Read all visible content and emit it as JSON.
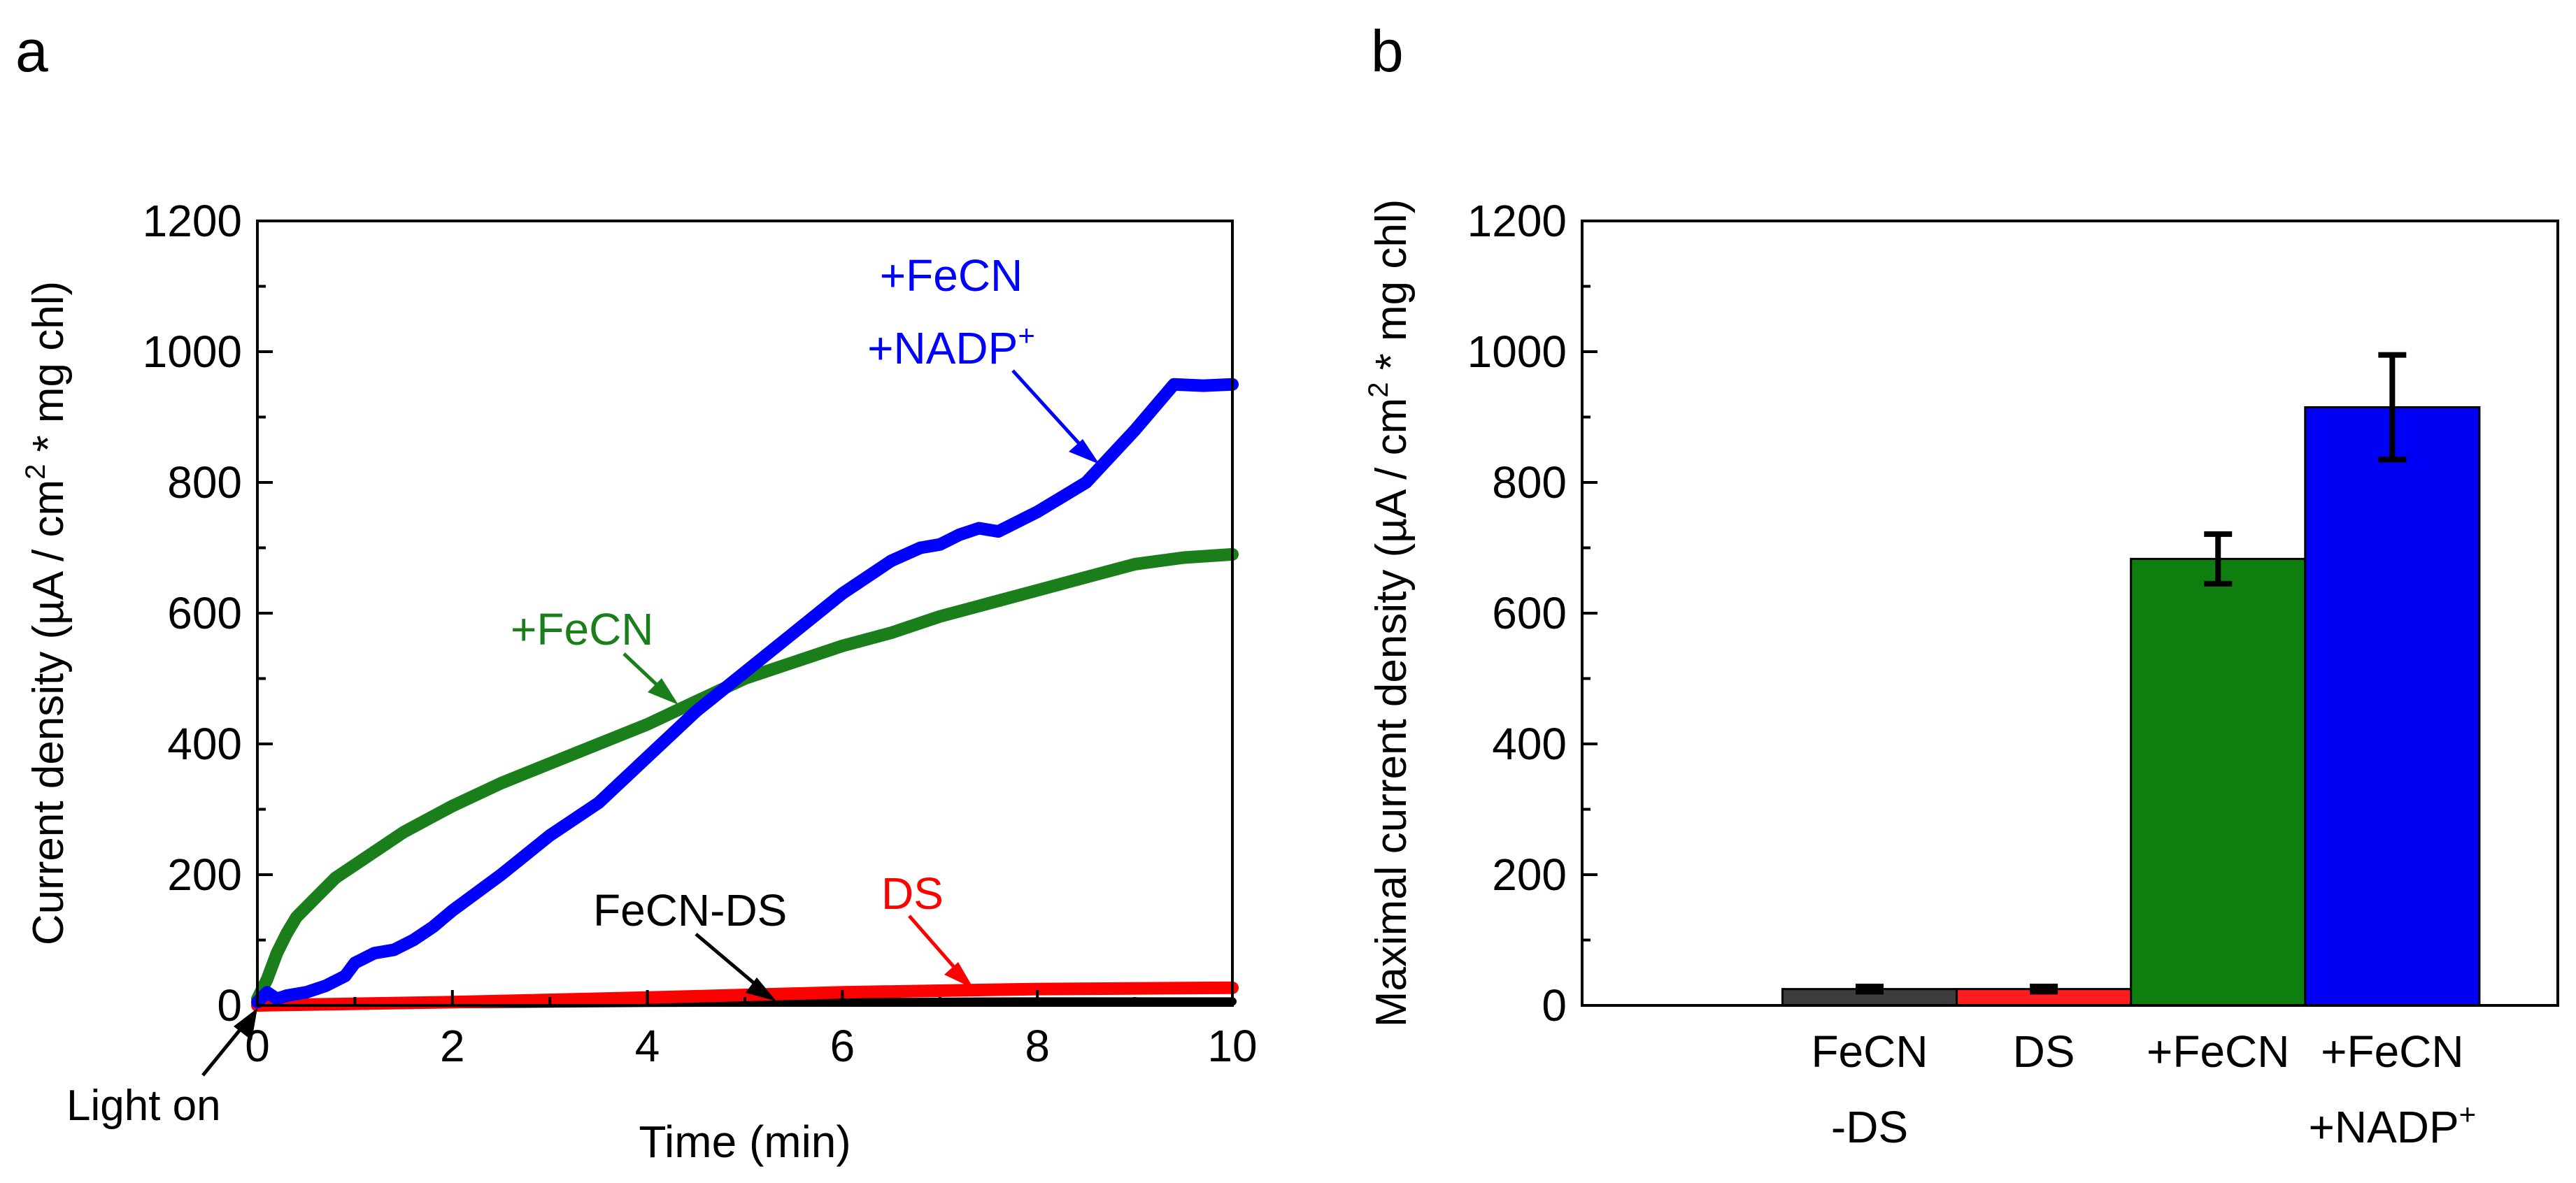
{
  "chart_data": [
    {
      "panel": "a",
      "type": "line",
      "xlabel": "Time (min)",
      "ylabel_main": "Current density (µA / cm",
      "ylabel_sup": "2",
      "ylabel_tail": " * mg chl)",
      "xlim": [
        0,
        10
      ],
      "ylim": [
        0,
        1200
      ],
      "xticks": [
        0,
        2,
        4,
        6,
        8,
        10
      ],
      "yticks": [
        0,
        200,
        400,
        600,
        800,
        1000,
        1200
      ],
      "series": [
        {
          "name": "+FeCN +NADP+",
          "color": "#0000ff",
          "x": [
            0,
            0.1,
            0.2,
            0.3,
            0.5,
            0.7,
            0.9,
            1.0,
            1.2,
            1.4,
            1.6,
            1.8,
            2.0,
            2.5,
            3.0,
            3.5,
            4.0,
            4.5,
            5.0,
            5.5,
            6.0,
            6.5,
            6.8,
            7.0,
            7.2,
            7.4,
            7.6,
            8.0,
            8.5,
            9.0,
            9.4,
            9.7,
            10.0
          ],
          "y": [
            5,
            20,
            10,
            15,
            20,
            30,
            45,
            65,
            80,
            85,
            100,
            120,
            145,
            200,
            260,
            310,
            380,
            450,
            510,
            570,
            630,
            680,
            700,
            705,
            720,
            730,
            725,
            755,
            800,
            880,
            950,
            948,
            950
          ]
        },
        {
          "name": "+FeCN",
          "color": "#1a7f1a",
          "x": [
            0,
            0.1,
            0.2,
            0.3,
            0.4,
            0.6,
            0.8,
            1.0,
            1.5,
            2.0,
            2.5,
            3.0,
            3.5,
            4.0,
            4.5,
            5.0,
            5.5,
            6.0,
            6.5,
            7.0,
            7.5,
            8.0,
            8.5,
            9.0,
            9.5,
            10.0
          ],
          "y": [
            10,
            40,
            80,
            110,
            135,
            165,
            195,
            215,
            265,
            305,
            340,
            370,
            400,
            430,
            465,
            500,
            525,
            550,
            570,
            595,
            615,
            635,
            655,
            675,
            685,
            690
          ]
        },
        {
          "name": "DS",
          "color": "#ff0000",
          "x": [
            0,
            2,
            4,
            6,
            8,
            10
          ],
          "y": [
            0,
            5,
            12,
            20,
            25,
            27
          ]
        },
        {
          "name": "FeCN-DS",
          "color": "#000000",
          "x": [
            0,
            2,
            4,
            6,
            8,
            10
          ],
          "y": [
            0,
            2,
            4,
            5,
            6,
            6
          ]
        }
      ],
      "annotations": {
        "nadp_line1": "+FeCN",
        "nadp_line2": "+NADP",
        "nadp_sup": "+",
        "fecn": "+FeCN",
        "ds": "DS",
        "fecnds": "FeCN-DS",
        "light_on": "Light on"
      }
    },
    {
      "panel": "b",
      "type": "bar",
      "ylabel_main": "Maximal current density (µA / cm",
      "ylabel_sup": "2",
      "ylabel_tail": " * mg chl)",
      "ylim": [
        0,
        1200
      ],
      "yticks": [
        0,
        200,
        400,
        600,
        800,
        1000,
        1200
      ],
      "categories": [
        {
          "line1": "FeCN",
          "line2": "-DS",
          "sup": ""
        },
        {
          "line1": "DS",
          "line2": "",
          "sup": ""
        },
        {
          "line1": "+FeCN",
          "line2": "",
          "sup": ""
        },
        {
          "line1": "+FeCN",
          "line2": "+NADP",
          "sup": "+"
        }
      ],
      "values": [
        25,
        25,
        683,
        915
      ],
      "errors": [
        4,
        4,
        38,
        80
      ],
      "colors": [
        "#3c3c3c",
        "#ff1c1c",
        "#0e7f0e",
        "#0000f5"
      ]
    }
  ],
  "panel_labels": {
    "a": "a",
    "b": "b"
  }
}
